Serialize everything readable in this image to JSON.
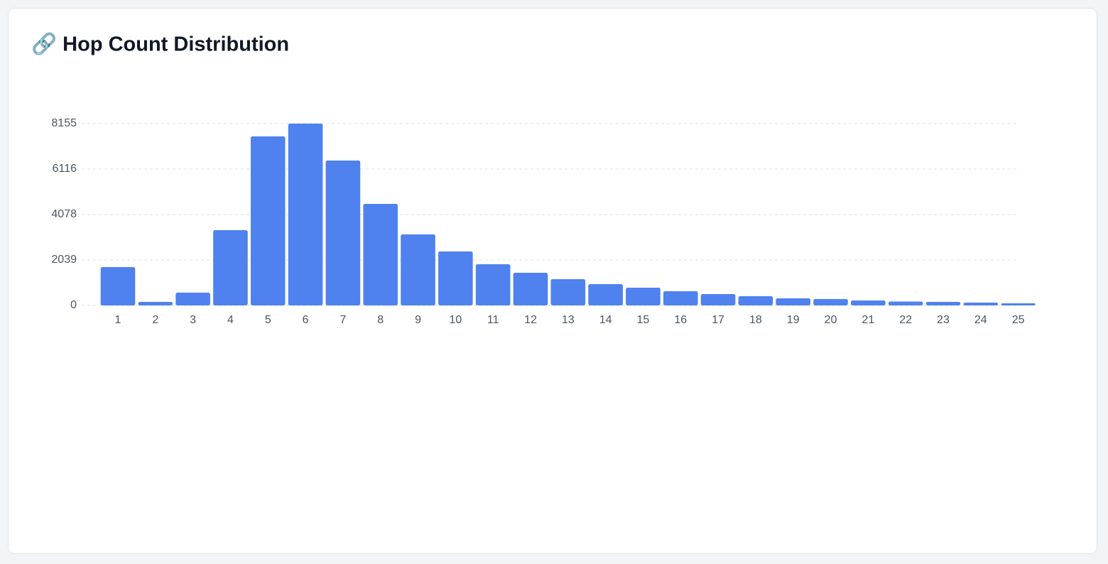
{
  "chart_data": {
    "type": "bar",
    "title": "🔗 Hop Count Distribution",
    "categories": [
      "1",
      "2",
      "3",
      "4",
      "5",
      "6",
      "7",
      "8",
      "9",
      "10",
      "11",
      "12",
      "13",
      "14",
      "15",
      "16",
      "17",
      "18",
      "19",
      "20",
      "21",
      "22",
      "23",
      "24",
      "25"
    ],
    "values": [
      1720,
      160,
      573,
      3377,
      7582,
      8155,
      6499,
      4555,
      3186,
      2421,
      1848,
      1465,
      1179,
      956,
      796,
      637,
      510,
      414,
      319,
      287,
      223,
      175,
      159,
      127,
      96
    ],
    "color": "#4f82ee",
    "ylim": [
      0,
      8155
    ],
    "yticks": [
      0,
      2039,
      4078,
      6116,
      8155
    ],
    "grid": true
  }
}
